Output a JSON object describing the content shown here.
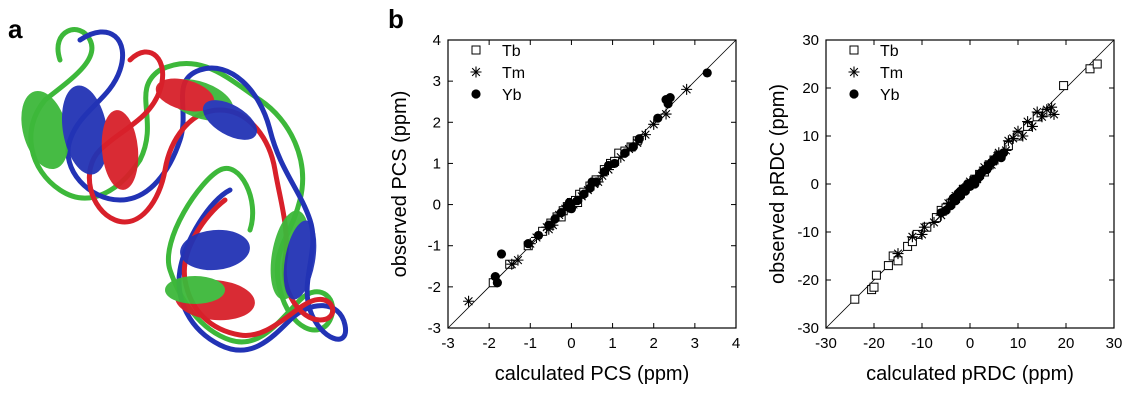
{
  "panels": {
    "a": "a",
    "b": "b"
  },
  "structure": {
    "description_colors": {
      "green": "#3db83a",
      "blue": "#2233b5",
      "red": "#d8202a"
    }
  },
  "chart_data": [
    {
      "type": "scatter",
      "title": "",
      "xlabel": "calculated PCS (ppm)",
      "ylabel": "observed PCS (ppm)",
      "xlim": [
        -3,
        4
      ],
      "ylim": [
        -3,
        4
      ],
      "xticks": [
        -3,
        -2,
        -1,
        0,
        1,
        2,
        3,
        4
      ],
      "yticks": [
        -3,
        -2,
        -1,
        0,
        1,
        2,
        3,
        4
      ],
      "diagonal": true,
      "legend": "top-left",
      "series": [
        {
          "name": "Tb",
          "marker": "open-square",
          "points": [
            [
              -1.9,
              -1.9
            ],
            [
              -1.5,
              -1.45
            ],
            [
              -1.05,
              -1.0
            ],
            [
              -0.7,
              -0.65
            ],
            [
              -0.5,
              -0.45
            ],
            [
              -0.35,
              -0.3
            ],
            [
              -0.2,
              -0.15
            ],
            [
              -0.1,
              -0.05
            ],
            [
              0.0,
              0.05
            ],
            [
              0.1,
              0.1
            ],
            [
              0.2,
              0.25
            ],
            [
              0.3,
              0.3
            ],
            [
              0.45,
              0.45
            ],
            [
              0.6,
              0.6
            ],
            [
              0.8,
              0.85
            ],
            [
              0.95,
              1.0
            ],
            [
              1.05,
              1.05
            ],
            [
              1.15,
              1.25
            ],
            [
              1.3,
              1.3
            ],
            [
              1.45,
              1.4
            ],
            [
              1.6,
              1.55
            ],
            [
              -0.25,
              -0.3
            ],
            [
              0.15,
              0.05
            ]
          ]
        },
        {
          "name": "Tm",
          "marker": "asterisk",
          "points": [
            [
              -2.5,
              -2.35
            ],
            [
              -1.45,
              -1.45
            ],
            [
              -1.3,
              -1.35
            ],
            [
              -1.0,
              -0.95
            ],
            [
              -0.85,
              -0.8
            ],
            [
              -0.6,
              -0.55
            ],
            [
              -0.45,
              -0.5
            ],
            [
              -0.3,
              -0.25
            ],
            [
              -0.15,
              -0.1
            ],
            [
              0.05,
              0.0
            ],
            [
              0.25,
              0.2
            ],
            [
              0.4,
              0.35
            ],
            [
              0.55,
              0.5
            ],
            [
              0.75,
              0.7
            ],
            [
              0.9,
              0.85
            ],
            [
              1.2,
              1.15
            ],
            [
              1.4,
              1.35
            ],
            [
              1.6,
              1.5
            ],
            [
              1.8,
              1.7
            ],
            [
              2.0,
              1.95
            ],
            [
              2.3,
              2.2
            ],
            [
              2.8,
              2.8
            ],
            [
              0.65,
              0.55
            ],
            [
              -0.55,
              -0.6
            ]
          ]
        },
        {
          "name": "Yb",
          "marker": "filled-circle",
          "points": [
            [
              -1.85,
              -1.75
            ],
            [
              -1.8,
              -1.9
            ],
            [
              -1.7,
              -1.2
            ],
            [
              -1.05,
              -0.95
            ],
            [
              -0.8,
              -0.75
            ],
            [
              -0.55,
              -0.5
            ],
            [
              -0.4,
              -0.35
            ],
            [
              -0.25,
              -0.2
            ],
            [
              -0.1,
              -0.05
            ],
            [
              0.0,
              -0.1
            ],
            [
              0.15,
              0.1
            ],
            [
              0.3,
              0.25
            ],
            [
              0.45,
              0.4
            ],
            [
              0.6,
              0.55
            ],
            [
              0.8,
              0.8
            ],
            [
              0.9,
              0.95
            ],
            [
              1.05,
              1.0
            ],
            [
              1.3,
              1.25
            ],
            [
              1.5,
              1.4
            ],
            [
              1.65,
              1.6
            ],
            [
              2.1,
              2.1
            ],
            [
              2.3,
              2.55
            ],
            [
              2.35,
              2.45
            ],
            [
              2.4,
              2.6
            ],
            [
              3.3,
              3.2
            ],
            [
              0.5,
              0.55
            ],
            [
              -0.05,
              0.05
            ]
          ]
        }
      ]
    },
    {
      "type": "scatter",
      "title": "",
      "xlabel": "calculated pRDC (ppm)",
      "ylabel": "observed pRDC (ppm)",
      "xlim": [
        -30,
        30
      ],
      "ylim": [
        -30,
        30
      ],
      "xticks": [
        -30,
        -20,
        -10,
        0,
        10,
        20,
        30
      ],
      "yticks": [
        -30,
        -20,
        -10,
        0,
        10,
        20,
        30
      ],
      "diagonal": true,
      "legend": "top-left",
      "series": [
        {
          "name": "Tb",
          "marker": "open-square",
          "points": [
            [
              -24,
              -24
            ],
            [
              -20.5,
              -22
            ],
            [
              -20,
              -21.5
            ],
            [
              -19.5,
              -19
            ],
            [
              -17,
              -17
            ],
            [
              -16,
              -15
            ],
            [
              -13,
              -13
            ],
            [
              -11,
              -10.5
            ],
            [
              -9,
              -9
            ],
            [
              -7,
              -7
            ],
            [
              -6,
              -5.5
            ],
            [
              -5,
              -5
            ],
            [
              -4,
              -4
            ],
            [
              -3,
              -3
            ],
            [
              -2,
              -2
            ],
            [
              -1,
              -1
            ],
            [
              0,
              0
            ],
            [
              1,
              1
            ],
            [
              2,
              2
            ],
            [
              3,
              2.5
            ],
            [
              4,
              4
            ],
            [
              5,
              5
            ],
            [
              6,
              6
            ],
            [
              8,
              8
            ],
            [
              10,
              10
            ],
            [
              12,
              12
            ],
            [
              14,
              14
            ],
            [
              16,
              15
            ],
            [
              19.5,
              20.5
            ],
            [
              25,
              24
            ],
            [
              26.5,
              25
            ],
            [
              -12,
              -12
            ],
            [
              -15,
              -16
            ]
          ]
        },
        {
          "name": "Tm",
          "marker": "asterisk",
          "points": [
            [
              -15,
              -14.5
            ],
            [
              -12,
              -11
            ],
            [
              -9.5,
              -9
            ],
            [
              -7.5,
              -8
            ],
            [
              -6,
              -6.5
            ],
            [
              -4.5,
              -4
            ],
            [
              -3,
              -2.5
            ],
            [
              -1.5,
              -1
            ],
            [
              0,
              0.5
            ],
            [
              1.5,
              1
            ],
            [
              3,
              3.5
            ],
            [
              4.5,
              4
            ],
            [
              6,
              6.5
            ],
            [
              7.5,
              7
            ],
            [
              9,
              9.5
            ],
            [
              10,
              11
            ],
            [
              11,
              10
            ],
            [
              12,
              13
            ],
            [
              13,
              12
            ],
            [
              14,
              15
            ],
            [
              15,
              14
            ],
            [
              16,
              15.5
            ],
            [
              17,
              16
            ],
            [
              17.5,
              14.5
            ],
            [
              -10,
              -10.5
            ],
            [
              8,
              9
            ]
          ]
        },
        {
          "name": "Yb",
          "marker": "filled-circle",
          "points": [
            [
              -6,
              -6
            ],
            [
              -5,
              -5.5
            ],
            [
              -4,
              -4.5
            ],
            [
              -3.5,
              -3
            ],
            [
              -3,
              -3.5
            ],
            [
              -2.5,
              -2
            ],
            [
              -2,
              -2.5
            ],
            [
              -1.5,
              -1
            ],
            [
              -1,
              -1.5
            ],
            [
              -0.5,
              0
            ],
            [
              0,
              -0.5
            ],
            [
              0.5,
              0.5
            ],
            [
              1,
              1
            ],
            [
              1.5,
              1
            ],
            [
              2,
              2
            ],
            [
              2.5,
              2.5
            ],
            [
              3,
              3
            ],
            [
              3.5,
              3
            ],
            [
              4,
              4
            ],
            [
              4.5,
              4.5
            ],
            [
              5,
              5
            ],
            [
              5.5,
              5.5
            ],
            [
              6,
              6
            ],
            [
              6.5,
              5.5
            ],
            [
              7,
              6.5
            ],
            [
              2,
              1.5
            ],
            [
              -2,
              -1.5
            ],
            [
              1,
              0
            ]
          ]
        }
      ]
    }
  ]
}
